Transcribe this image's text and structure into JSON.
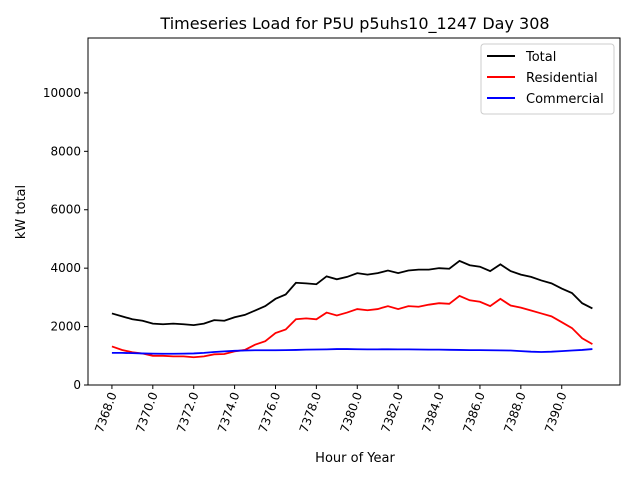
{
  "chart_data": {
    "type": "line",
    "title": "Timeseries Load for P5U p5uhs10_1247  Day 308",
    "xlabel": "Hour of Year",
    "ylabel": "kW total",
    "xlim": [
      7366.83,
      7392.85
    ],
    "ylim": [
      0,
      11880
    ],
    "xticks": [
      7368,
      7370,
      7372,
      7374,
      7376,
      7378,
      7380,
      7382,
      7384,
      7386,
      7388,
      7390
    ],
    "xtick_labels": [
      "7368.0",
      "7370.0",
      "7372.0",
      "7374.0",
      "7376.0",
      "7378.0",
      "7380.0",
      "7382.0",
      "7384.0",
      "7386.0",
      "7388.0",
      "7390.0"
    ],
    "yticks": [
      0,
      2000,
      4000,
      6000,
      8000,
      10000
    ],
    "ytick_labels": [
      "0",
      "2000",
      "4000",
      "6000",
      "8000",
      "10000"
    ],
    "grid": false,
    "legend_position": "top-right",
    "x_start": 7368,
    "x_step": 0.5,
    "series": [
      {
        "name": "Total",
        "color": "#000000",
        "values": [
          2450,
          2350,
          2250,
          2200,
          2100,
          2080,
          2100,
          2080,
          2050,
          2100,
          2220,
          2200,
          2320,
          2400,
          2550,
          2700,
          2950,
          3100,
          3500,
          3480,
          3450,
          3720,
          3620,
          3700,
          3830,
          3780,
          3830,
          3920,
          3830,
          3920,
          3950,
          3950,
          4000,
          3980,
          4250,
          4100,
          4050,
          3900,
          4130,
          3900,
          3780,
          3700,
          3580,
          3480,
          3300,
          3150,
          2800,
          2620
        ]
      },
      {
        "name": "Residential",
        "color": "#ff0000",
        "values": [
          1320,
          1200,
          1120,
          1080,
          1000,
          1000,
          980,
          980,
          950,
          980,
          1050,
          1060,
          1150,
          1200,
          1380,
          1500,
          1780,
          1900,
          2250,
          2280,
          2250,
          2480,
          2380,
          2480,
          2600,
          2560,
          2600,
          2700,
          2600,
          2700,
          2680,
          2750,
          2800,
          2780,
          3050,
          2900,
          2850,
          2700,
          2950,
          2720,
          2650,
          2550,
          2450,
          2350,
          2150,
          1950,
          1600,
          1400
        ]
      },
      {
        "name": "Commercial",
        "color": "#0000ff",
        "values": [
          1100,
          1100,
          1090,
          1080,
          1075,
          1070,
          1070,
          1075,
          1080,
          1100,
          1130,
          1150,
          1170,
          1180,
          1190,
          1190,
          1190,
          1195,
          1200,
          1210,
          1215,
          1220,
          1230,
          1230,
          1225,
          1220,
          1220,
          1225,
          1220,
          1220,
          1215,
          1210,
          1210,
          1205,
          1200,
          1195,
          1195,
          1190,
          1185,
          1180,
          1160,
          1140,
          1130,
          1140,
          1160,
          1180,
          1200,
          1230
        ]
      }
    ]
  }
}
